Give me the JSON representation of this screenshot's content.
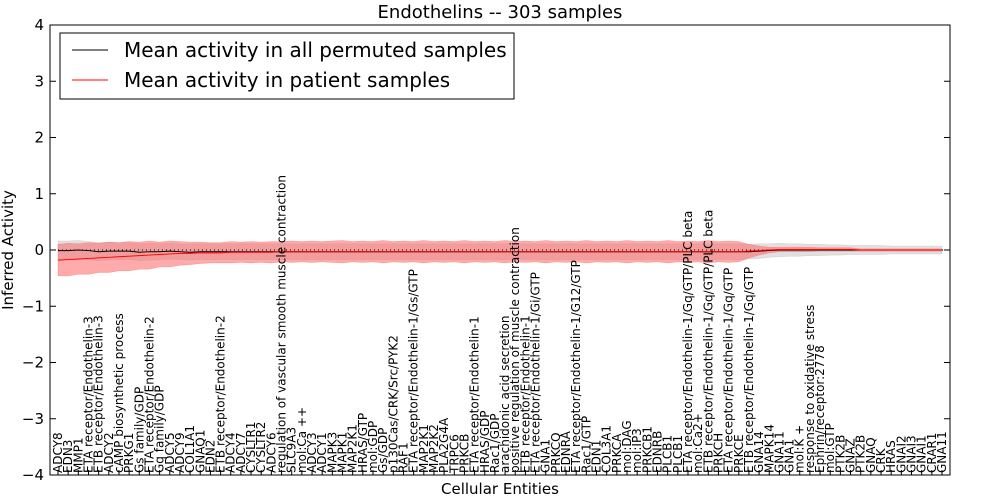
{
  "chart_data": {
    "type": "line",
    "title": "Endothelins -- 303 samples",
    "xlabel": "Cellular Entities",
    "ylabel": "Inferred Activity",
    "ylim": [
      -4,
      4
    ],
    "yticks": [
      "-4",
      "-3",
      "-2",
      "-1",
      "0",
      "1",
      "2",
      "3",
      "4"
    ],
    "grid": false,
    "legend_position": "top-left",
    "reference_line": "dotted horizontal line at 0",
    "categories": [
      "ADCY8",
      "EDN3",
      "MMP1",
      "ETA receptor/Endothelin-3",
      "ETB receptor/Endothelin-3",
      "ADCY2",
      "cAMP biosynthetic process",
      "PRKG1",
      "Gs family/GDP",
      "ETA receptor/Endothelin-2",
      "Gq family/GDP",
      "ADCY5",
      "ADCY9",
      "COL1A1",
      "GNAQ1",
      "EDN2",
      "ETB receptor/Endothelin-2",
      "ADCY4",
      "ADCY7",
      "CYSLTR1",
      "CYSLTR2",
      "ADCY6",
      "regulation of vascular smooth muscle contraction",
      "SLC9A3",
      "mol:Ca ++",
      "ADCY3",
      "ADCY1",
      "MAPK3",
      "MAPK1",
      "MAP2K1",
      "HRAS/GTP",
      "mol:GDP",
      "Gs/GDP",
      "p130Cas/CRK/Src/PYK2",
      "RAF1",
      "ETA receptor/Endothelin-1/Gs/GTP",
      "MAP2K1",
      "MAP2K2",
      "PLA2G4A",
      "TRPC6",
      "PRKCB",
      "ETA receptor/Endothelin-1",
      "HRAS/GDP",
      "Rac1/GDP",
      "arachidonic acid secretion",
      "positive regulation of muscle contraction",
      "ETB receptor/Endothelin-1",
      "ETA receptor/Endothelin-1/Gi/GTP",
      "GNA1",
      "PRKCQ",
      "EDNRA",
      "ETA receptor/Endothelin-1/G12/GTP",
      "Rac1/GTP",
      "EDN1",
      "COL3A1",
      "PRKCA",
      "mol:DAG",
      "mol:IP3",
      "PRKCB1",
      "EDNRB",
      "PLCB1",
      "PLCB1",
      "ETA receptor/Endothelin-1/Gq/GTP/PLC beta",
      "mol:Ca2+",
      "ETB receptor/Endothelin-1/Gq/GTP/PLC beta",
      "PRKCH",
      "ETA receptor/Endothelin-1/Gq/GTP",
      "PRKCE",
      "ETB receptor/Endothelin-1/Gq/GTP",
      "GNA14",
      "MAPK14",
      "GNA11",
      "GNA1",
      "mol:K +",
      "response to oxidative stress",
      "Ephrin/receptor:2778",
      "mol:GTP",
      "PTK2B",
      "GNAZ",
      "PTK2B",
      "GNAQ",
      "CRK",
      "HRAS",
      "GNAI2",
      "GNAI3",
      "GNAI1",
      "CRAR1",
      "GNA11"
    ],
    "series": [
      {
        "name": "Mean activity in all permuted samples",
        "color": "#000000",
        "band_color": "#bbbbbb",
        "values": [
          -0.01,
          -0.01,
          0.0,
          -0.01,
          -0.03,
          -0.02,
          -0.02,
          -0.02,
          -0.04,
          -0.03,
          -0.03,
          -0.02,
          -0.03,
          -0.04,
          -0.03,
          -0.03,
          -0.03,
          -0.03,
          -0.03,
          -0.03,
          -0.03,
          -0.03,
          -0.03,
          -0.03,
          -0.03,
          -0.03,
          -0.03,
          -0.03,
          -0.03,
          -0.03,
          -0.03,
          -0.03,
          -0.03,
          -0.03,
          -0.03,
          -0.03,
          -0.03,
          -0.03,
          -0.03,
          -0.03,
          -0.03,
          -0.03,
          -0.03,
          -0.03,
          -0.03,
          -0.03,
          -0.03,
          -0.03,
          -0.03,
          -0.03,
          -0.03,
          -0.03,
          -0.03,
          -0.03,
          -0.03,
          -0.03,
          -0.03,
          -0.03,
          -0.03,
          -0.03,
          -0.03,
          -0.03,
          -0.03,
          -0.03,
          -0.03,
          -0.03,
          -0.03,
          -0.03,
          -0.03,
          -0.02,
          -0.01,
          0.0,
          0.0,
          0.0,
          0.0,
          0.0,
          0.0,
          0.0,
          0.0,
          0.0,
          0.0,
          0.0,
          0.0,
          0.0,
          0.0,
          0.0,
          0.0,
          0.0
        ],
        "band": [
          0.17,
          0.17,
          0.17,
          0.16,
          0.16,
          0.16,
          0.15,
          0.15,
          0.15,
          0.15,
          0.14,
          0.14,
          0.14,
          0.14,
          0.14,
          0.14,
          0.14,
          0.14,
          0.14,
          0.14,
          0.14,
          0.14,
          0.14,
          0.14,
          0.14,
          0.14,
          0.14,
          0.14,
          0.14,
          0.14,
          0.14,
          0.14,
          0.14,
          0.14,
          0.14,
          0.14,
          0.14,
          0.14,
          0.14,
          0.14,
          0.14,
          0.14,
          0.14,
          0.14,
          0.14,
          0.14,
          0.14,
          0.14,
          0.14,
          0.14,
          0.14,
          0.14,
          0.14,
          0.14,
          0.14,
          0.14,
          0.14,
          0.14,
          0.14,
          0.14,
          0.14,
          0.14,
          0.14,
          0.14,
          0.14,
          0.14,
          0.14,
          0.14,
          0.13,
          0.13,
          0.12,
          0.12,
          0.11,
          0.11,
          0.1,
          0.1,
          0.09,
          0.09,
          0.08,
          0.08,
          0.08,
          0.08,
          0.07,
          0.07,
          0.07,
          0.07,
          0.07,
          0.07
        ]
      },
      {
        "name": "Mean activity in patient samples",
        "color": "#ff0000",
        "band_color": "#ff6666",
        "values": [
          -0.18,
          -0.17,
          -0.16,
          -0.15,
          -0.14,
          -0.13,
          -0.12,
          -0.11,
          -0.1,
          -0.09,
          -0.08,
          -0.07,
          -0.06,
          -0.06,
          -0.05,
          -0.05,
          -0.05,
          -0.04,
          -0.04,
          -0.04,
          -0.04,
          -0.04,
          -0.03,
          -0.03,
          -0.03,
          -0.03,
          -0.03,
          -0.03,
          -0.03,
          -0.03,
          -0.03,
          -0.03,
          -0.03,
          -0.03,
          -0.03,
          -0.03,
          -0.03,
          -0.03,
          -0.03,
          -0.03,
          -0.03,
          -0.03,
          -0.03,
          -0.03,
          -0.03,
          -0.03,
          -0.03,
          -0.03,
          -0.03,
          -0.03,
          -0.03,
          -0.03,
          -0.03,
          -0.03,
          -0.03,
          -0.03,
          -0.03,
          -0.03,
          -0.03,
          -0.03,
          -0.03,
          -0.03,
          -0.03,
          -0.03,
          -0.03,
          -0.03,
          -0.03,
          -0.03,
          -0.02,
          -0.01,
          0.0,
          0.01,
          0.01,
          0.01,
          0.01,
          0.01,
          0.01,
          0.01,
          0.01,
          0.0,
          0.0,
          0.0,
          0.0,
          0.0,
          0.0,
          0.0,
          0.0,
          0.0
        ],
        "band": [
          0.28,
          0.29,
          0.27,
          0.28,
          0.26,
          0.27,
          0.25,
          0.26,
          0.24,
          0.25,
          0.22,
          0.23,
          0.21,
          0.2,
          0.19,
          0.18,
          0.18,
          0.19,
          0.18,
          0.19,
          0.18,
          0.19,
          0.18,
          0.19,
          0.18,
          0.19,
          0.18,
          0.19,
          0.2,
          0.18,
          0.19,
          0.18,
          0.2,
          0.18,
          0.19,
          0.18,
          0.2,
          0.18,
          0.19,
          0.18,
          0.2,
          0.18,
          0.19,
          0.18,
          0.2,
          0.18,
          0.19,
          0.18,
          0.2,
          0.18,
          0.19,
          0.18,
          0.2,
          0.18,
          0.19,
          0.18,
          0.2,
          0.18,
          0.19,
          0.18,
          0.2,
          0.18,
          0.19,
          0.18,
          0.2,
          0.18,
          0.19,
          0.18,
          0.12,
          0.08,
          0.05,
          0.04,
          0.04,
          0.04,
          0.04,
          0.03,
          0.03,
          0.03,
          0.03,
          0.02,
          0.02,
          0.02,
          0.02,
          0.02,
          0.02,
          0.02,
          0.02,
          0.02
        ]
      }
    ]
  }
}
